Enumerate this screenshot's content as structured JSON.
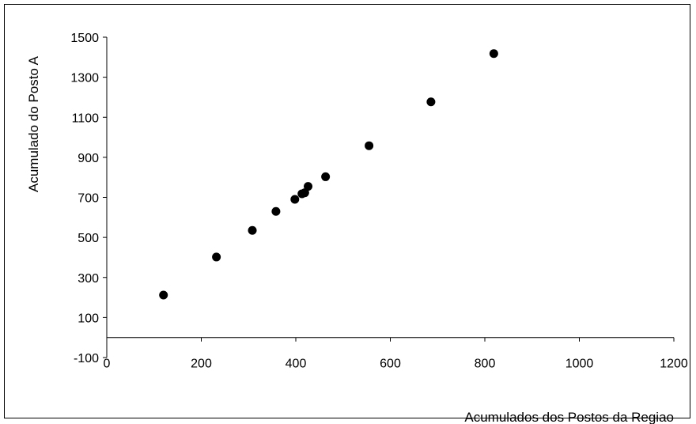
{
  "chart_data": {
    "type": "scatter",
    "title": "",
    "xlabel": "Acumulados dos Postos da Regiao",
    "ylabel": "Acumulado do Posto A",
    "xlim": [
      0,
      1200
    ],
    "ylim": [
      -100,
      1500
    ],
    "xticks": [
      0,
      200,
      400,
      600,
      800,
      1000,
      1200
    ],
    "yticks": [
      -100,
      100,
      300,
      500,
      700,
      900,
      1100,
      1300,
      1500
    ],
    "grid": false,
    "legend": "none",
    "marker_color": "#000000",
    "x": [
      120,
      232,
      308,
      358,
      398,
      413,
      419,
      426,
      463,
      555,
      686,
      819
    ],
    "y": [
      212,
      402,
      535,
      630,
      690,
      718,
      723,
      755,
      803,
      958,
      1177,
      1418
    ]
  }
}
